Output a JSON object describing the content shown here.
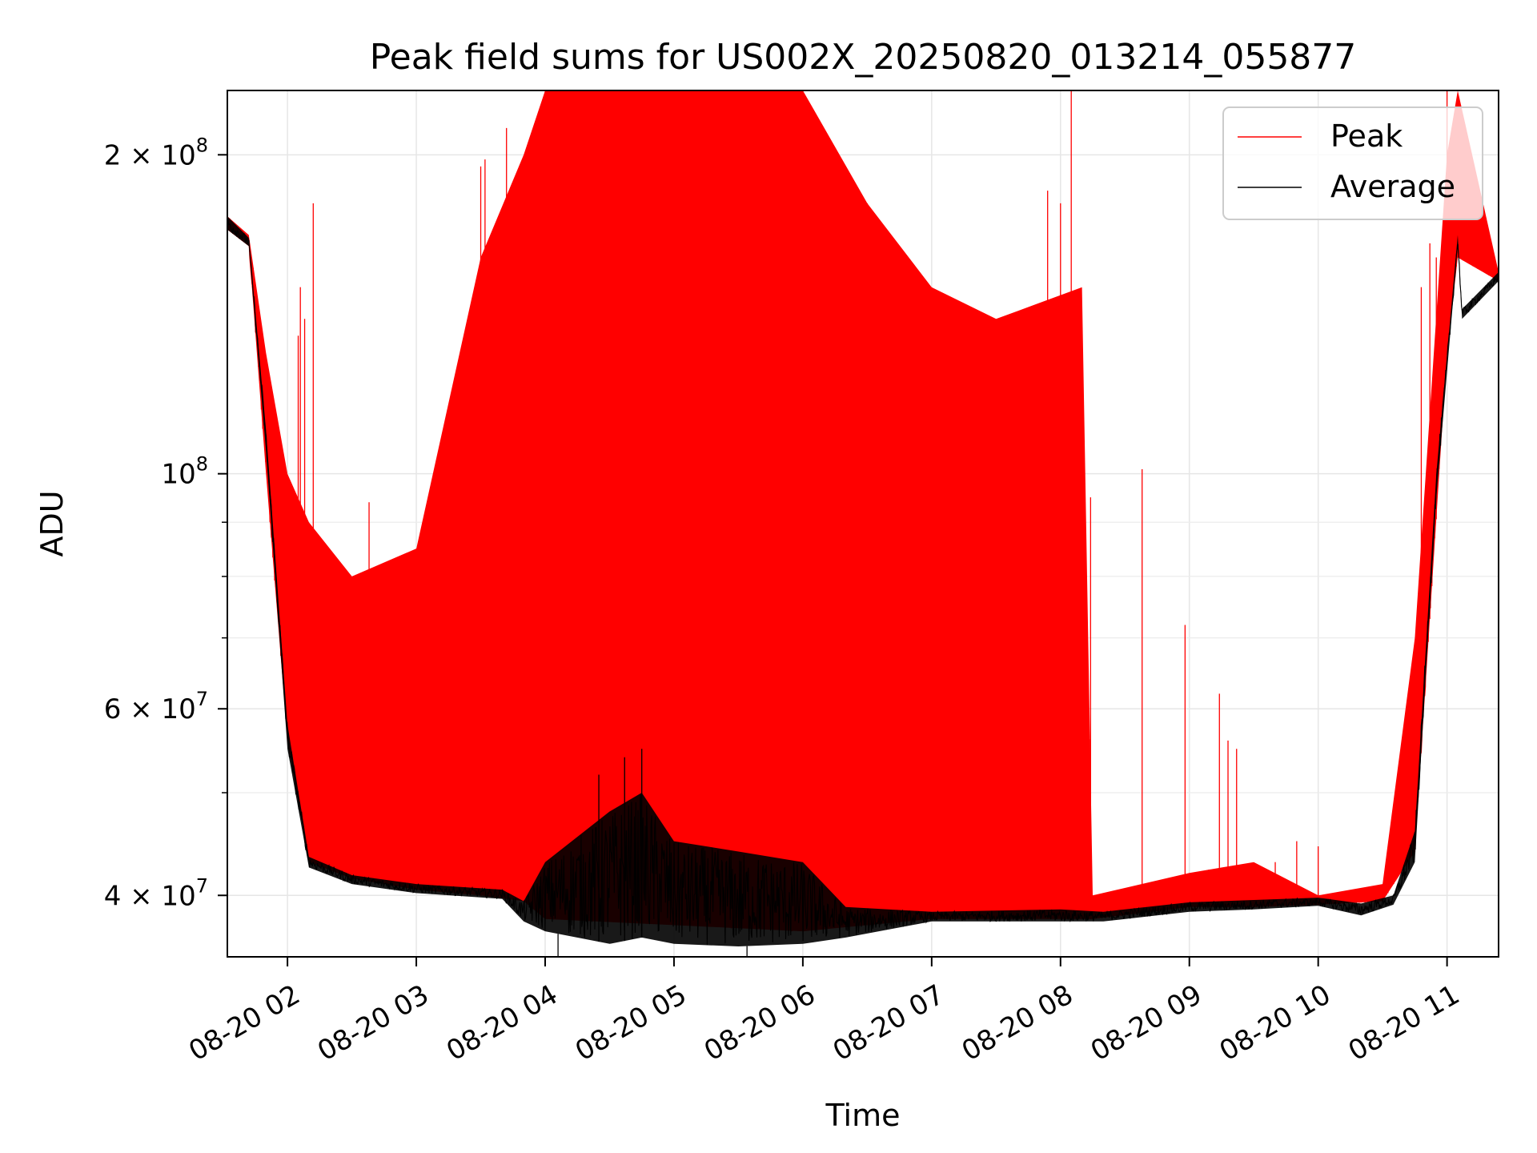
{
  "chart_data": {
    "type": "line",
    "title": "Peak field sums for US002X_20250820_013214_055877",
    "xlabel": "Time",
    "ylabel": "ADU",
    "yscale": "log",
    "ylim": [
      35000000,
      230000000
    ],
    "xlim": [
      "2025-08-20 01:32",
      "2025-08-20 11:24"
    ],
    "grid": true,
    "legend_position": "top-right",
    "x_ticks": [
      {
        "t": "2025-08-20 02:00",
        "label": "08-20 02"
      },
      {
        "t": "2025-08-20 03:00",
        "label": "08-20 03"
      },
      {
        "t": "2025-08-20 04:00",
        "label": "08-20 04"
      },
      {
        "t": "2025-08-20 05:00",
        "label": "08-20 05"
      },
      {
        "t": "2025-08-20 06:00",
        "label": "08-20 06"
      },
      {
        "t": "2025-08-20 07:00",
        "label": "08-20 07"
      },
      {
        "t": "2025-08-20 08:00",
        "label": "08-20 08"
      },
      {
        "t": "2025-08-20 09:00",
        "label": "08-20 09"
      },
      {
        "t": "2025-08-20 10:00",
        "label": "08-20 10"
      },
      {
        "t": "2025-08-20 11:00",
        "label": "08-20 11"
      }
    ],
    "y_ticks": [
      {
        "value": 40000000,
        "mant": "4",
        "exp": "7"
      },
      {
        "value": 60000000,
        "mant": "6",
        "exp": "7"
      },
      {
        "value": 100000000,
        "mant": "",
        "exp": "8"
      },
      {
        "value": 200000000,
        "mant": "2",
        "exp": "8"
      }
    ],
    "y_minor_ticks": [
      50000000,
      70000000,
      80000000,
      90000000
    ],
    "series": [
      {
        "name": "Peak",
        "color": "#ff0000",
        "envelope": [
          {
            "t": "2025-08-20 01:32",
            "low": 170000000,
            "high": 175000000
          },
          {
            "t": "2025-08-20 01:42",
            "low": 164000000,
            "high": 168000000
          },
          {
            "t": "2025-08-20 01:50",
            "low": 100000000,
            "high": 130000000
          },
          {
            "t": "2025-08-20 02:00",
            "low": 56000000,
            "high": 100000000
          },
          {
            "t": "2025-08-20 02:10",
            "low": 43000000,
            "high": 90000000
          },
          {
            "t": "2025-08-20 02:30",
            "low": 41500000,
            "high": 80000000
          },
          {
            "t": "2025-08-20 03:00",
            "low": 40500000,
            "high": 85000000
          },
          {
            "t": "2025-08-20 03:30",
            "low": 40000000,
            "high": 160000000
          },
          {
            "t": "2025-08-20 03:50",
            "low": 39500000,
            "high": 200000000
          },
          {
            "t": "2025-08-20 04:00",
            "low": 38000000,
            "high": 230000000
          },
          {
            "t": "2025-08-20 05:00",
            "low": 37500000,
            "high": 230000000
          },
          {
            "t": "2025-08-20 06:00",
            "low": 37000000,
            "high": 230000000
          },
          {
            "t": "2025-08-20 06:30",
            "low": 37500000,
            "high": 180000000
          },
          {
            "t": "2025-08-20 07:00",
            "low": 38000000,
            "high": 150000000
          },
          {
            "t": "2025-08-20 07:30",
            "low": 38000000,
            "high": 140000000
          },
          {
            "t": "2025-08-20 08:10",
            "low": 38000000,
            "high": 150000000
          },
          {
            "t": "2025-08-20 08:15",
            "low": 38000000,
            "high": 40000000
          },
          {
            "t": "2025-08-20 09:00",
            "low": 39000000,
            "high": 42000000
          },
          {
            "t": "2025-08-20 09:30",
            "low": 39000000,
            "high": 43000000
          },
          {
            "t": "2025-08-20 10:00",
            "low": 39200000,
            "high": 40000000
          },
          {
            "t": "2025-08-20 10:30",
            "low": 39500000,
            "high": 41000000
          },
          {
            "t": "2025-08-20 10:45",
            "low": 44000000,
            "high": 70000000
          },
          {
            "t": "2025-08-20 11:00",
            "low": 130000000,
            "high": 200000000
          },
          {
            "t": "2025-08-20 11:05",
            "low": 160000000,
            "high": 230000000
          },
          {
            "t": "2025-08-20 11:24",
            "low": 152000000,
            "high": 155000000
          }
        ],
        "spikes": [
          {
            "t": "2025-08-20 01:54",
            "value": 110000000
          },
          {
            "t": "2025-08-20 02:05",
            "value": 135000000
          },
          {
            "t": "2025-08-20 02:06",
            "value": 150000000
          },
          {
            "t": "2025-08-20 02:08",
            "value": 140000000
          },
          {
            "t": "2025-08-20 02:12",
            "value": 180000000
          },
          {
            "t": "2025-08-20 02:25",
            "value": 80000000
          },
          {
            "t": "2025-08-20 02:38",
            "value": 94000000
          },
          {
            "t": "2025-08-20 03:05",
            "value": 91000000
          },
          {
            "t": "2025-08-20 03:18",
            "value": 115000000
          },
          {
            "t": "2025-08-20 03:22",
            "value": 115000000
          },
          {
            "t": "2025-08-20 03:30",
            "value": 195000000
          },
          {
            "t": "2025-08-20 03:32",
            "value": 198000000
          },
          {
            "t": "2025-08-20 03:42",
            "value": 212000000
          },
          {
            "t": "2025-08-20 06:30",
            "value": 180000000
          },
          {
            "t": "2025-08-20 06:50",
            "value": 125000000
          },
          {
            "t": "2025-08-20 07:10",
            "value": 145000000
          },
          {
            "t": "2025-08-20 07:45",
            "value": 115000000
          },
          {
            "t": "2025-08-20 07:54",
            "value": 185000000
          },
          {
            "t": "2025-08-20 08:00",
            "value": 180000000
          },
          {
            "t": "2025-08-20 08:05",
            "value": 230000000
          },
          {
            "t": "2025-08-20 08:14",
            "value": 95000000
          },
          {
            "t": "2025-08-20 08:38",
            "value": 101000000
          },
          {
            "t": "2025-08-20 08:58",
            "value": 72000000
          },
          {
            "t": "2025-08-20 09:14",
            "value": 62000000
          },
          {
            "t": "2025-08-20 09:18",
            "value": 56000000
          },
          {
            "t": "2025-08-20 09:22",
            "value": 55000000
          },
          {
            "t": "2025-08-20 09:40",
            "value": 43000000
          },
          {
            "t": "2025-08-20 09:50",
            "value": 45000000
          },
          {
            "t": "2025-08-20 10:00",
            "value": 44500000
          },
          {
            "t": "2025-08-20 10:48",
            "value": 150000000
          },
          {
            "t": "2025-08-20 10:52",
            "value": 165000000
          },
          {
            "t": "2025-08-20 10:55",
            "value": 160000000
          },
          {
            "t": "2025-08-20 11:00",
            "value": 230000000
          }
        ]
      },
      {
        "name": "Average",
        "color": "#000000",
        "envelope": [
          {
            "t": "2025-08-20 01:32",
            "low": 170000000,
            "high": 175000000
          },
          {
            "t": "2025-08-20 01:42",
            "low": 164000000,
            "high": 167000000
          },
          {
            "t": "2025-08-20 01:50",
            "low": 105000000,
            "high": 110000000
          },
          {
            "t": "2025-08-20 02:00",
            "low": 55000000,
            "high": 58000000
          },
          {
            "t": "2025-08-20 02:10",
            "low": 42500000,
            "high": 43500000
          },
          {
            "t": "2025-08-20 02:30",
            "low": 41000000,
            "high": 41800000
          },
          {
            "t": "2025-08-20 03:00",
            "low": 40200000,
            "high": 41000000
          },
          {
            "t": "2025-08-20 03:40",
            "low": 39700000,
            "high": 40500000
          },
          {
            "t": "2025-08-20 03:50",
            "low": 37800000,
            "high": 39500000
          },
          {
            "t": "2025-08-20 04:00",
            "low": 37000000,
            "high": 43000000
          },
          {
            "t": "2025-08-20 04:30",
            "low": 36000000,
            "high": 48000000
          },
          {
            "t": "2025-08-20 04:45",
            "low": 36500000,
            "high": 50000000
          },
          {
            "t": "2025-08-20 05:00",
            "low": 36000000,
            "high": 45000000
          },
          {
            "t": "2025-08-20 05:30",
            "low": 35800000,
            "high": 44000000
          },
          {
            "t": "2025-08-20 06:00",
            "low": 36000000,
            "high": 43000000
          },
          {
            "t": "2025-08-20 06:20",
            "low": 36500000,
            "high": 39000000
          },
          {
            "t": "2025-08-20 07:00",
            "low": 37800000,
            "high": 38600000
          },
          {
            "t": "2025-08-20 08:00",
            "low": 37800000,
            "high": 38800000
          },
          {
            "t": "2025-08-20 08:20",
            "low": 37800000,
            "high": 38600000
          },
          {
            "t": "2025-08-20 09:00",
            "low": 38600000,
            "high": 39400000
          },
          {
            "t": "2025-08-20 09:30",
            "low": 38800000,
            "high": 39600000
          },
          {
            "t": "2025-08-20 10:00",
            "low": 39100000,
            "high": 39800000
          },
          {
            "t": "2025-08-20 10:20",
            "low": 38300000,
            "high": 39300000
          },
          {
            "t": "2025-08-20 10:35",
            "low": 39200000,
            "high": 40000000
          },
          {
            "t": "2025-08-20 10:45",
            "low": 43000000,
            "high": 46000000
          },
          {
            "t": "2025-08-20 10:55",
            "low": 95000000,
            "high": 100000000
          },
          {
            "t": "2025-08-20 11:05",
            "low": 164000000,
            "high": 168000000
          },
          {
            "t": "2025-08-20 11:07",
            "low": 140000000,
            "high": 143000000
          },
          {
            "t": "2025-08-20 11:24",
            "low": 152000000,
            "high": 155000000
          }
        ],
        "spikes": [
          {
            "t": "2025-08-20 04:06",
            "value": 30000000
          },
          {
            "t": "2025-08-20 04:25",
            "value": 52000000
          },
          {
            "t": "2025-08-20 04:37",
            "value": 54000000
          },
          {
            "t": "2025-08-20 04:45",
            "value": 55000000
          },
          {
            "t": "2025-08-20 05:34",
            "value": 33500000
          }
        ]
      }
    ]
  }
}
